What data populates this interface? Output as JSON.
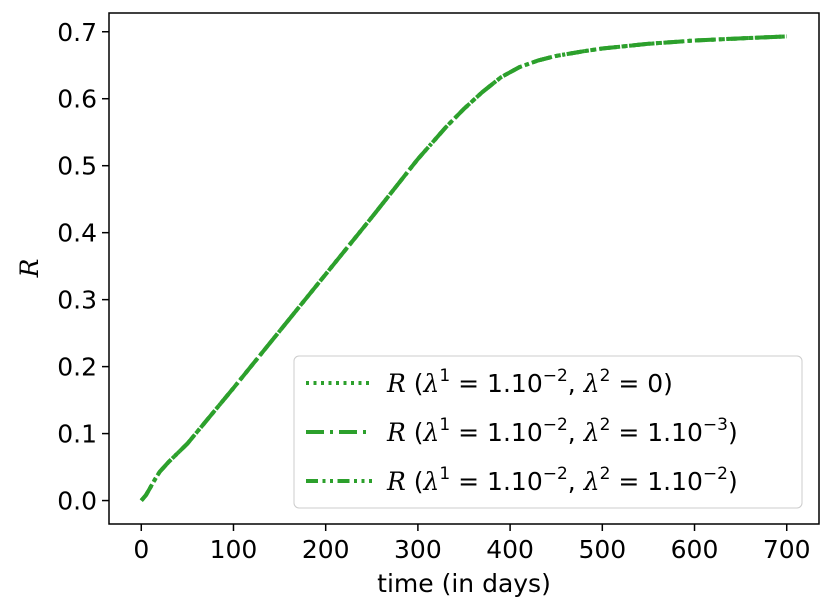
{
  "chart_data": {
    "type": "line",
    "xlabel": "time (in days)",
    "ylabel": "R",
    "xlim": [
      -35,
      735
    ],
    "ylim": [
      -0.035,
      0.728
    ],
    "xticks": [
      0,
      100,
      200,
      300,
      400,
      500,
      600,
      700
    ],
    "yticks": [
      0.0,
      0.1,
      0.2,
      0.3,
      0.4,
      0.5,
      0.6,
      0.7
    ],
    "xtick_labels": [
      "0",
      "100",
      "200",
      "300",
      "400",
      "500",
      "600",
      "700"
    ],
    "ytick_labels": [
      "0.0",
      "0.1",
      "0.2",
      "0.3",
      "0.4",
      "0.5",
      "0.6",
      "0.7"
    ],
    "grid": false,
    "legend_position": "lower-right",
    "series": [
      {
        "name": "R (λ1 = 1.10−2, λ2 = 0)",
        "color": "#2ca02c",
        "linestyle": "dotted",
        "x": [
          0,
          5,
          10,
          15,
          20,
          30,
          50,
          100,
          150,
          200,
          250,
          300,
          330,
          350,
          370,
          390,
          410,
          430,
          450,
          480,
          500,
          550,
          600,
          650,
          700
        ],
        "y": [
          0.0,
          0.008,
          0.02,
          0.032,
          0.043,
          0.058,
          0.085,
          0.168,
          0.253,
          0.338,
          0.423,
          0.51,
          0.557,
          0.585,
          0.61,
          0.632,
          0.647,
          0.657,
          0.664,
          0.671,
          0.675,
          0.682,
          0.687,
          0.69,
          0.693
        ]
      },
      {
        "name": "R (λ1 = 1.10−2, λ2 = 1.10−3)",
        "color": "#2ca02c",
        "linestyle": "dashdot",
        "x": [
          0,
          5,
          10,
          15,
          20,
          30,
          50,
          100,
          150,
          200,
          250,
          300,
          330,
          350,
          370,
          390,
          410,
          430,
          450,
          480,
          500,
          550,
          600,
          650,
          700
        ],
        "y": [
          0.0,
          0.008,
          0.02,
          0.032,
          0.043,
          0.058,
          0.085,
          0.168,
          0.253,
          0.338,
          0.423,
          0.51,
          0.557,
          0.585,
          0.61,
          0.632,
          0.647,
          0.657,
          0.664,
          0.671,
          0.675,
          0.682,
          0.687,
          0.69,
          0.693
        ]
      },
      {
        "name": "R (λ1 = 1.10−2, λ2 = 1.10−2)",
        "color": "#2ca02c",
        "linestyle": "dashdotdot",
        "x": [
          0,
          5,
          10,
          15,
          20,
          30,
          50,
          100,
          150,
          200,
          250,
          300,
          330,
          350,
          370,
          390,
          410,
          430,
          450,
          480,
          500,
          550,
          600,
          650,
          700
        ],
        "y": [
          0.0,
          0.008,
          0.02,
          0.032,
          0.043,
          0.058,
          0.085,
          0.168,
          0.253,
          0.338,
          0.423,
          0.51,
          0.557,
          0.585,
          0.61,
          0.632,
          0.647,
          0.657,
          0.664,
          0.671,
          0.675,
          0.682,
          0.687,
          0.69,
          0.693
        ]
      }
    ],
    "legend": [
      {
        "prefix": "R",
        "open": " (",
        "lam": "λ",
        "s1": "1",
        "eq1": " = 1.10",
        "e1": "−2",
        "comma": ", ",
        "s2": "2",
        "eq2": " = 0",
        "e2": "",
        "close": ")"
      },
      {
        "prefix": "R",
        "open": " (",
        "lam": "λ",
        "s1": "1",
        "eq1": " = 1.10",
        "e1": "−2",
        "comma": ", ",
        "s2": "2",
        "eq2": " = 1.10",
        "e2": "−3",
        "close": ")"
      },
      {
        "prefix": "R",
        "open": " (",
        "lam": "λ",
        "s1": "1",
        "eq1": " = 1.10",
        "e1": "−2",
        "comma": ", ",
        "s2": "2",
        "eq2": " = 1.10",
        "e2": "−2",
        "close": ")"
      }
    ]
  }
}
